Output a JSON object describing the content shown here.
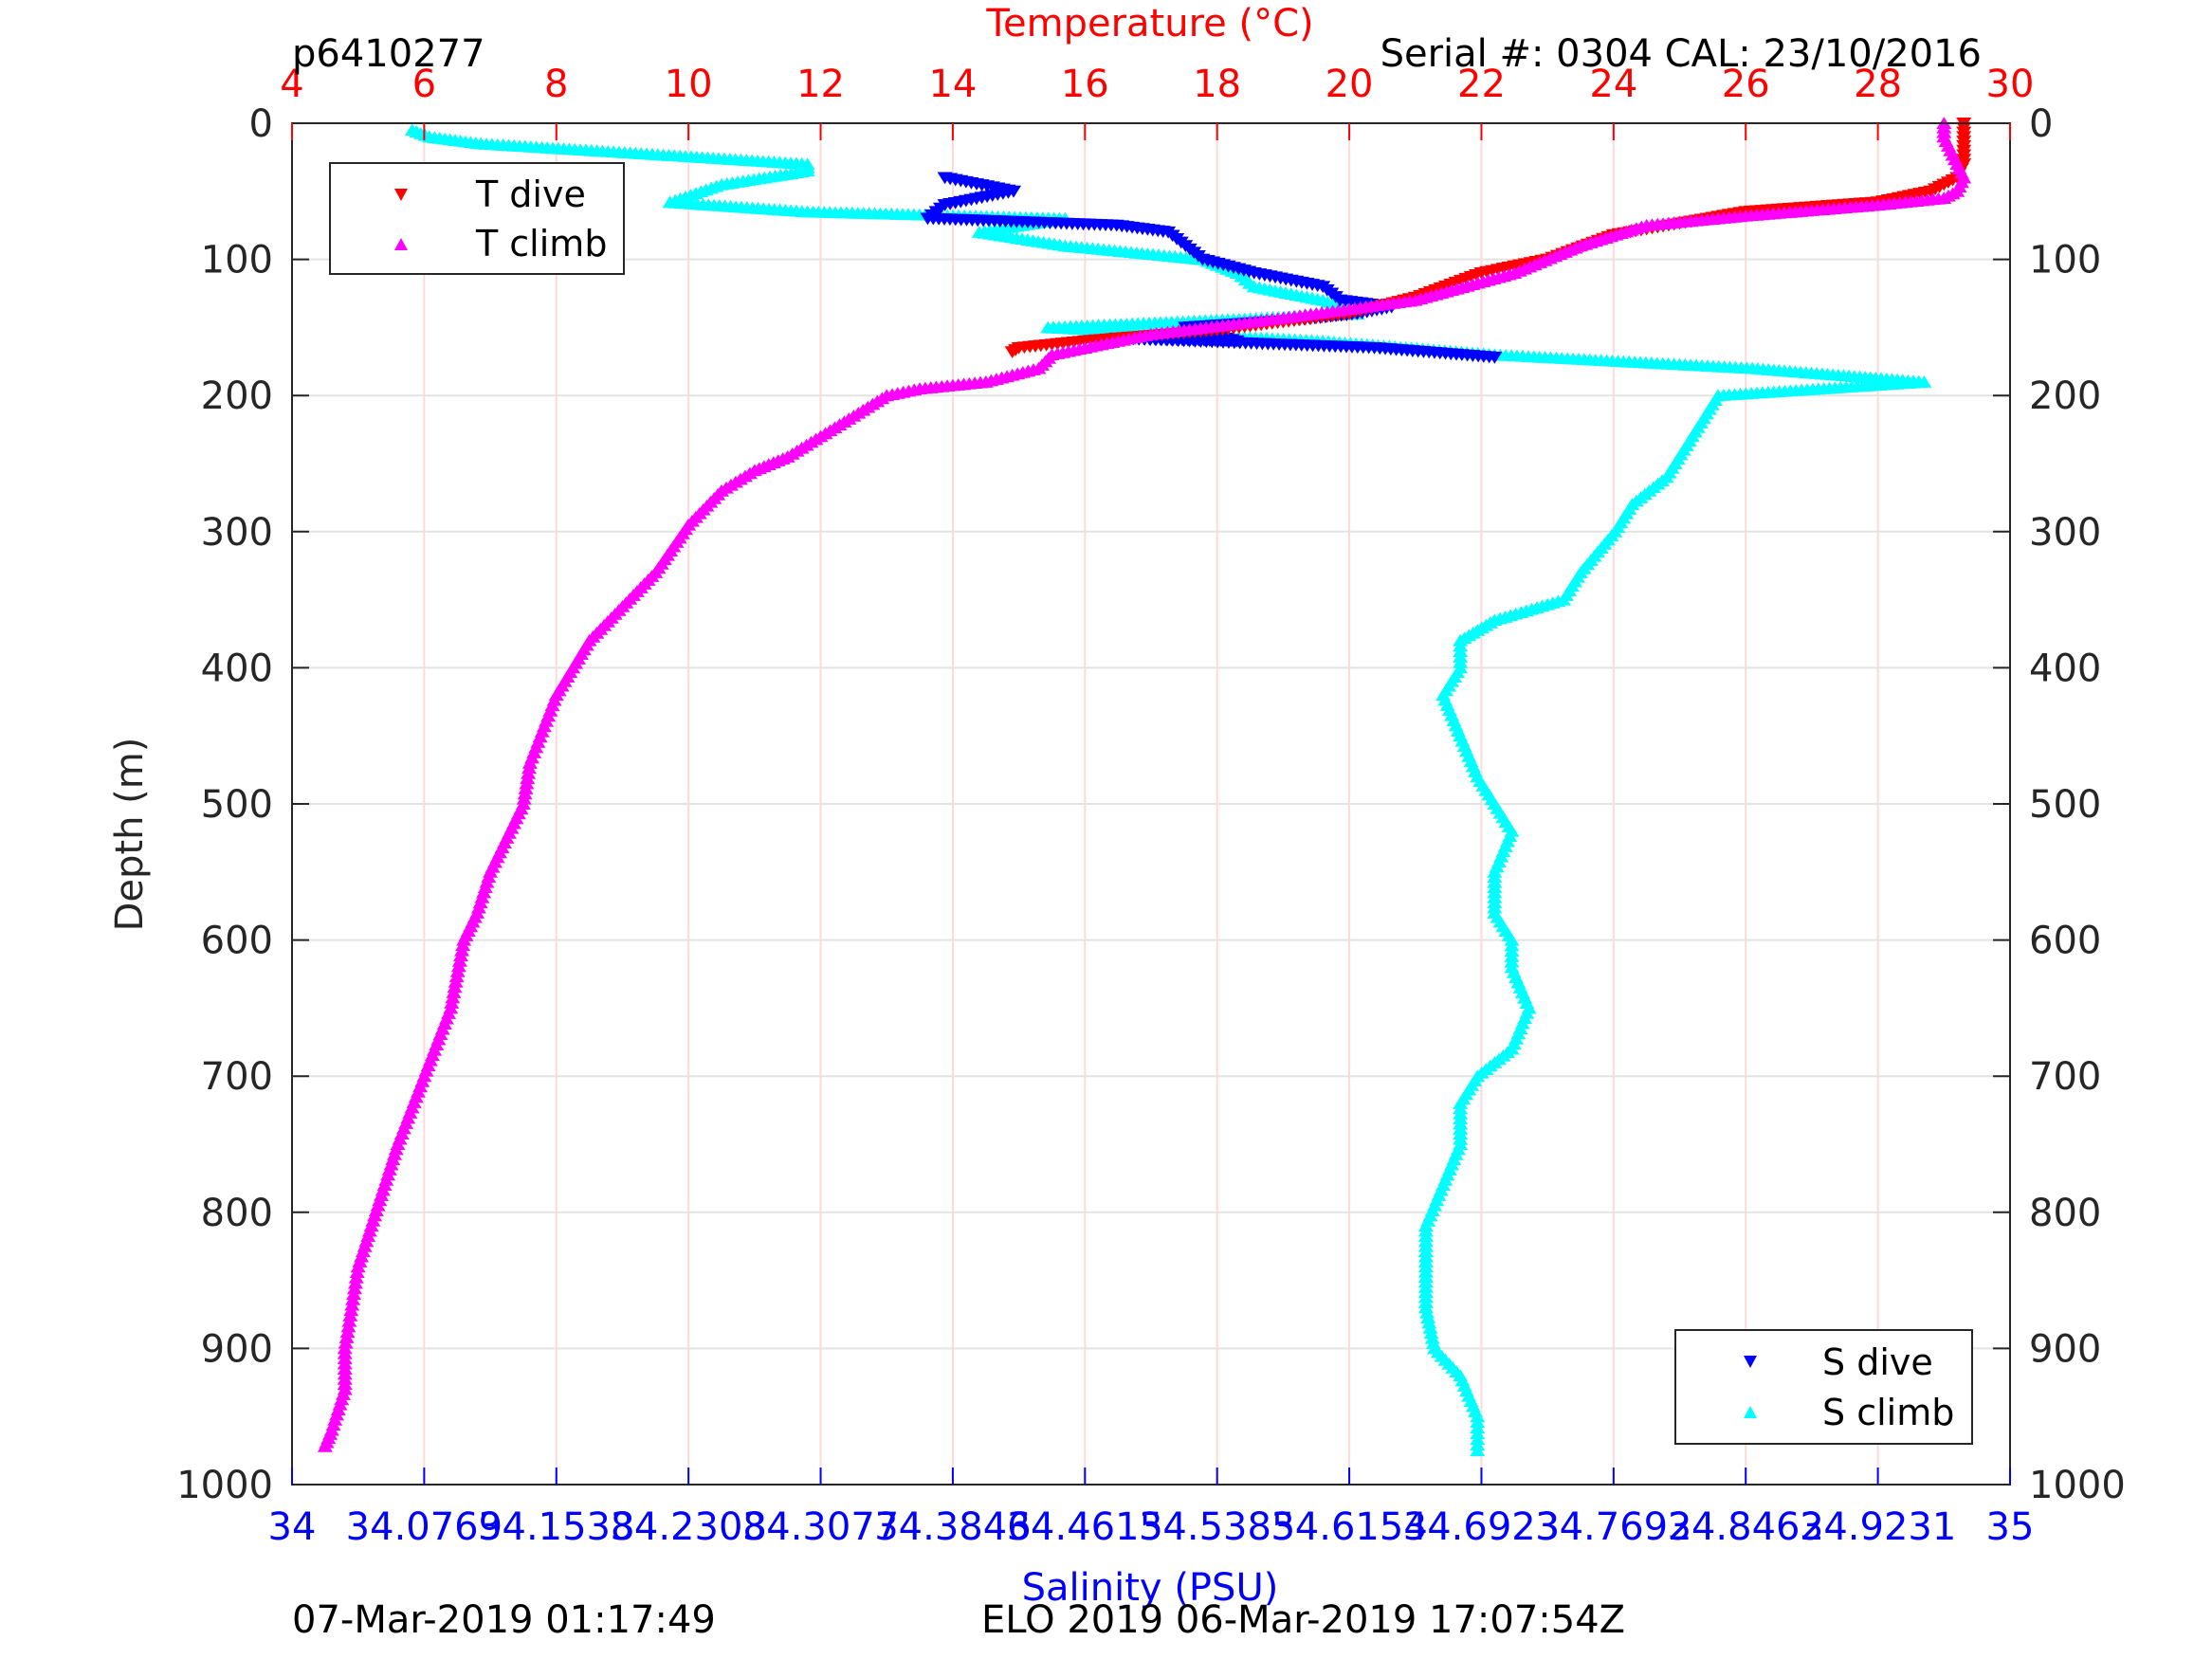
{
  "header": {
    "plot_id": "p6410277",
    "serial": "Serial #: 0304  CAL: 23/10/2016"
  },
  "footer": {
    "timestamp_left": "07-Mar-2019 01:17:49",
    "timestamp_right": "ELO 2019 06-Mar-2019 17:07:54Z"
  },
  "colors": {
    "t_dive": "#ff0000",
    "t_climb": "#ff00ff",
    "s_dive": "#0000ff",
    "s_climb": "#00ffff",
    "temp_axis": "#ff0000",
    "sal_axis": "#0000ff",
    "axis": "#262626"
  },
  "chart_data": {
    "type": "scatter",
    "ylabel": "Depth (m)",
    "ylim": [
      0,
      1000
    ],
    "y_reversed": true,
    "y_ticks": [
      "0",
      "100",
      "200",
      "300",
      "400",
      "500",
      "600",
      "700",
      "800",
      "900",
      "1000"
    ],
    "top_axis": {
      "label": "Temperature (°C)",
      "range": [
        4,
        30
      ],
      "ticks": [
        "4",
        "6",
        "8",
        "10",
        "12",
        "14",
        "16",
        "18",
        "20",
        "22",
        "24",
        "26",
        "28",
        "30"
      ]
    },
    "bottom_axis": {
      "label": "Salinity (PSU)",
      "range": [
        34,
        35
      ],
      "ticks": [
        "34",
        "34.0769",
        "34.1538",
        "34.2308",
        "34.3077",
        "34.3846",
        "34.4615",
        "34.5385",
        "34.6154",
        "34.6923",
        "34.7692",
        "34.8462",
        "34.9231",
        "35"
      ]
    },
    "grid": "temperature ticks (light red) and depth ticks (light grey)",
    "legends": [
      {
        "position": "top-left",
        "entries": [
          "T dive",
          "T climb"
        ]
      },
      {
        "position": "bottom-right",
        "entries": [
          "S dive",
          "S climb"
        ]
      }
    ],
    "series": [
      {
        "name": "T dive",
        "axis": "temperature",
        "marker": "triangle-down",
        "points": [
          [
            29.3,
            0
          ],
          [
            29.3,
            10
          ],
          [
            29.3,
            20
          ],
          [
            29.3,
            30
          ],
          [
            29.2,
            40
          ],
          [
            28.8,
            50
          ],
          [
            28.0,
            58
          ],
          [
            26.0,
            65
          ],
          [
            24.0,
            82
          ],
          [
            23.0,
            100
          ],
          [
            22.0,
            110
          ],
          [
            21.0,
            128
          ],
          [
            20.0,
            140
          ],
          [
            18.0,
            152
          ],
          [
            16.0,
            160
          ],
          [
            15.0,
            165
          ],
          [
            14.9,
            168
          ]
        ]
      },
      {
        "name": "T climb",
        "axis": "temperature",
        "marker": "triangle-up",
        "points": [
          [
            29.0,
            0
          ],
          [
            29.0,
            10
          ],
          [
            29.1,
            20
          ],
          [
            29.2,
            30
          ],
          [
            29.3,
            40
          ],
          [
            29.2,
            50
          ],
          [
            29.0,
            55
          ],
          [
            28.0,
            60
          ],
          [
            26.0,
            68
          ],
          [
            24.5,
            75
          ],
          [
            23.5,
            90
          ],
          [
            22.5,
            110
          ],
          [
            21.0,
            130
          ],
          [
            19.0,
            143
          ],
          [
            17.0,
            155
          ],
          [
            15.5,
            170
          ],
          [
            15.3,
            180
          ],
          [
            14.5,
            190
          ],
          [
            13.5,
            195
          ],
          [
            13.0,
            200
          ],
          [
            12.5,
            215
          ],
          [
            12.0,
            230
          ],
          [
            11.5,
            245
          ],
          [
            11.0,
            255
          ],
          [
            10.5,
            270
          ],
          [
            10.0,
            295
          ],
          [
            9.5,
            330
          ],
          [
            9.0,
            355
          ],
          [
            8.5,
            380
          ],
          [
            8.0,
            420
          ],
          [
            7.6,
            470
          ],
          [
            7.5,
            500
          ],
          [
            7.0,
            550
          ],
          [
            6.8,
            580
          ],
          [
            6.6,
            600
          ],
          [
            6.4,
            650
          ],
          [
            6.0,
            700
          ],
          [
            5.6,
            750
          ],
          [
            5.4,
            780
          ],
          [
            5.0,
            840
          ],
          [
            4.8,
            900
          ],
          [
            4.8,
            930
          ],
          [
            4.6,
            960
          ],
          [
            4.5,
            972
          ]
        ]
      },
      {
        "name": "S dive",
        "axis": "salinity",
        "marker": "triangle-down",
        "points": [
          [
            34.38,
            40
          ],
          [
            34.42,
            50
          ],
          [
            34.38,
            60
          ],
          [
            34.37,
            70
          ],
          [
            34.48,
            75
          ],
          [
            34.51,
            80
          ],
          [
            34.52,
            90
          ],
          [
            34.53,
            100
          ],
          [
            34.56,
            110
          ],
          [
            34.6,
            120
          ],
          [
            34.61,
            130
          ],
          [
            34.64,
            135
          ],
          [
            34.62,
            140
          ],
          [
            34.58,
            145
          ],
          [
            34.52,
            150
          ],
          [
            34.55,
            160
          ],
          [
            34.48,
            158
          ],
          [
            34.63,
            165
          ],
          [
            34.7,
            172
          ]
        ]
      },
      {
        "name": "S climb",
        "axis": "salinity",
        "marker": "triangle-up",
        "points": [
          [
            34.07,
            5
          ],
          [
            34.08,
            10
          ],
          [
            34.11,
            15
          ],
          [
            34.2,
            22
          ],
          [
            34.3,
            30
          ],
          [
            34.3,
            35
          ],
          [
            34.25,
            45
          ],
          [
            34.22,
            58
          ],
          [
            34.3,
            65
          ],
          [
            34.45,
            70
          ],
          [
            34.4,
            80
          ],
          [
            34.45,
            90
          ],
          [
            34.53,
            100
          ],
          [
            34.55,
            110
          ],
          [
            34.56,
            120
          ],
          [
            34.6,
            130
          ],
          [
            34.62,
            140
          ],
          [
            34.44,
            150
          ],
          [
            34.6,
            160
          ],
          [
            34.7,
            170
          ],
          [
            34.85,
            180
          ],
          [
            34.9,
            185
          ],
          [
            34.95,
            190
          ],
          [
            34.83,
            200
          ],
          [
            34.82,
            220
          ],
          [
            34.81,
            240
          ],
          [
            34.8,
            260
          ],
          [
            34.78,
            280
          ],
          [
            34.77,
            300
          ],
          [
            34.75,
            330
          ],
          [
            34.74,
            350
          ],
          [
            34.7,
            365
          ],
          [
            34.68,
            380
          ],
          [
            34.68,
            400
          ],
          [
            34.67,
            420
          ],
          [
            34.68,
            450
          ],
          [
            34.69,
            480
          ],
          [
            34.7,
            500
          ],
          [
            34.71,
            520
          ],
          [
            34.7,
            550
          ],
          [
            34.7,
            580
          ],
          [
            34.71,
            600
          ],
          [
            34.71,
            620
          ],
          [
            34.72,
            650
          ],
          [
            34.71,
            680
          ],
          [
            34.69,
            700
          ],
          [
            34.68,
            720
          ],
          [
            34.68,
            750
          ],
          [
            34.67,
            780
          ],
          [
            34.66,
            810
          ],
          [
            34.66,
            840
          ],
          [
            34.66,
            870
          ],
          [
            34.665,
            900
          ],
          [
            34.68,
            920
          ],
          [
            34.69,
            950
          ],
          [
            34.69,
            975
          ]
        ]
      }
    ]
  }
}
